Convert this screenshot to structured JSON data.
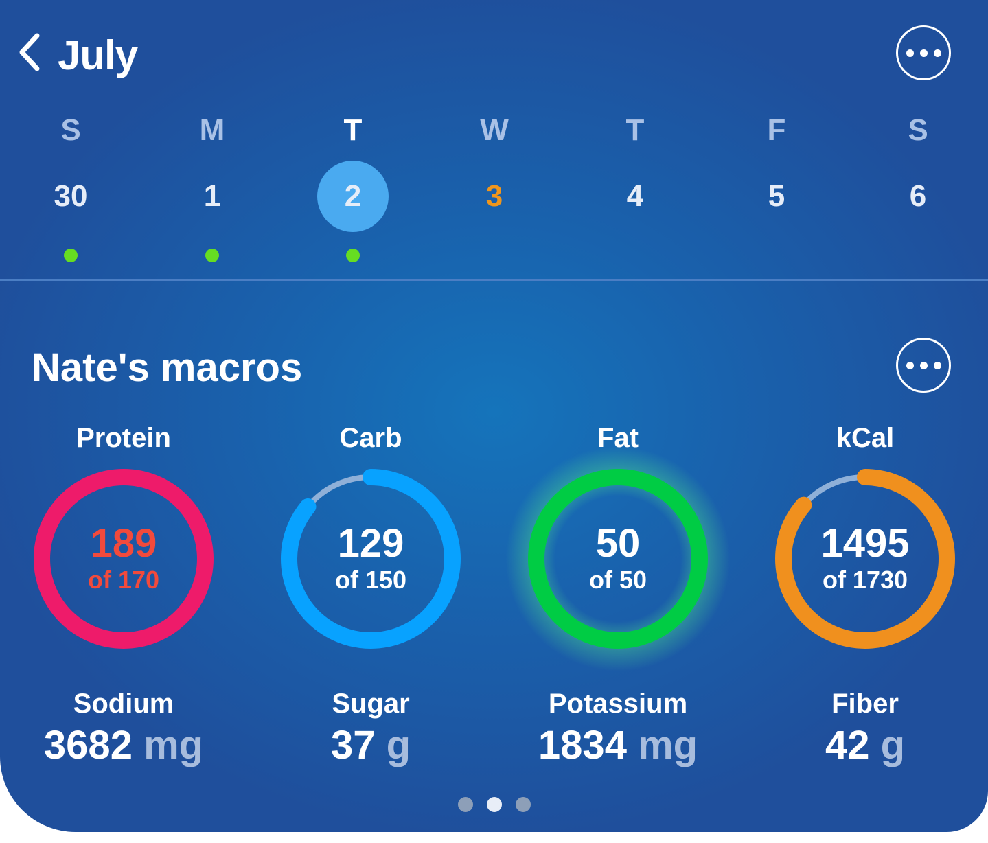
{
  "header": {
    "month": "July"
  },
  "week": [
    {
      "weekday": "S",
      "date": "30",
      "logged": true,
      "selected": false,
      "today": false
    },
    {
      "weekday": "M",
      "date": "1",
      "logged": true,
      "selected": false,
      "today": false
    },
    {
      "weekday": "T",
      "date": "2",
      "logged": true,
      "selected": true,
      "today": false
    },
    {
      "weekday": "W",
      "date": "3",
      "logged": false,
      "selected": false,
      "today": true
    },
    {
      "weekday": "T",
      "date": "4",
      "logged": false,
      "selected": false,
      "today": false
    },
    {
      "weekday": "F",
      "date": "5",
      "logged": false,
      "selected": false,
      "today": false
    },
    {
      "weekday": "S",
      "date": "6",
      "logged": false,
      "selected": false,
      "today": false
    }
  ],
  "macros": {
    "title": "Nate's macros",
    "rings": [
      {
        "key": "protein",
        "label": "Protein",
        "value": "189",
        "of": "of 170",
        "progress": 1.0,
        "color": "#ee1b6a",
        "text_color": "#f24a3c",
        "glow": false
      },
      {
        "key": "carb",
        "label": "Carb",
        "value": "129",
        "of": "of 150",
        "progress": 0.86,
        "color": "#08a2ff",
        "text_color": "#ffffff",
        "glow": false
      },
      {
        "key": "fat",
        "label": "Fat",
        "value": "50",
        "of": "of 50",
        "progress": 1.0,
        "color": "#00cc44",
        "text_color": "#ffffff",
        "glow": true
      },
      {
        "key": "kcal",
        "label": "kCal",
        "value": "1495",
        "of": "of 1730",
        "progress": 0.864,
        "color": "#f0901e",
        "text_color": "#ffffff",
        "glow": false
      }
    ],
    "nutrients": [
      {
        "key": "sodium",
        "label": "Sodium",
        "value": "3682",
        "unit": "mg"
      },
      {
        "key": "sugar",
        "label": "Sugar",
        "value": "37",
        "unit": "g"
      },
      {
        "key": "potassium",
        "label": "Potassium",
        "value": "1834",
        "unit": "mg"
      },
      {
        "key": "fiber",
        "label": "Fiber",
        "value": "42",
        "unit": "g"
      }
    ]
  },
  "pager": {
    "count": 3,
    "active": 1
  },
  "colors": {
    "track": "#8fb0d8",
    "logged_dot": "#66dd22",
    "selected_day": "#4aaaf0",
    "today": "#f0961c"
  }
}
